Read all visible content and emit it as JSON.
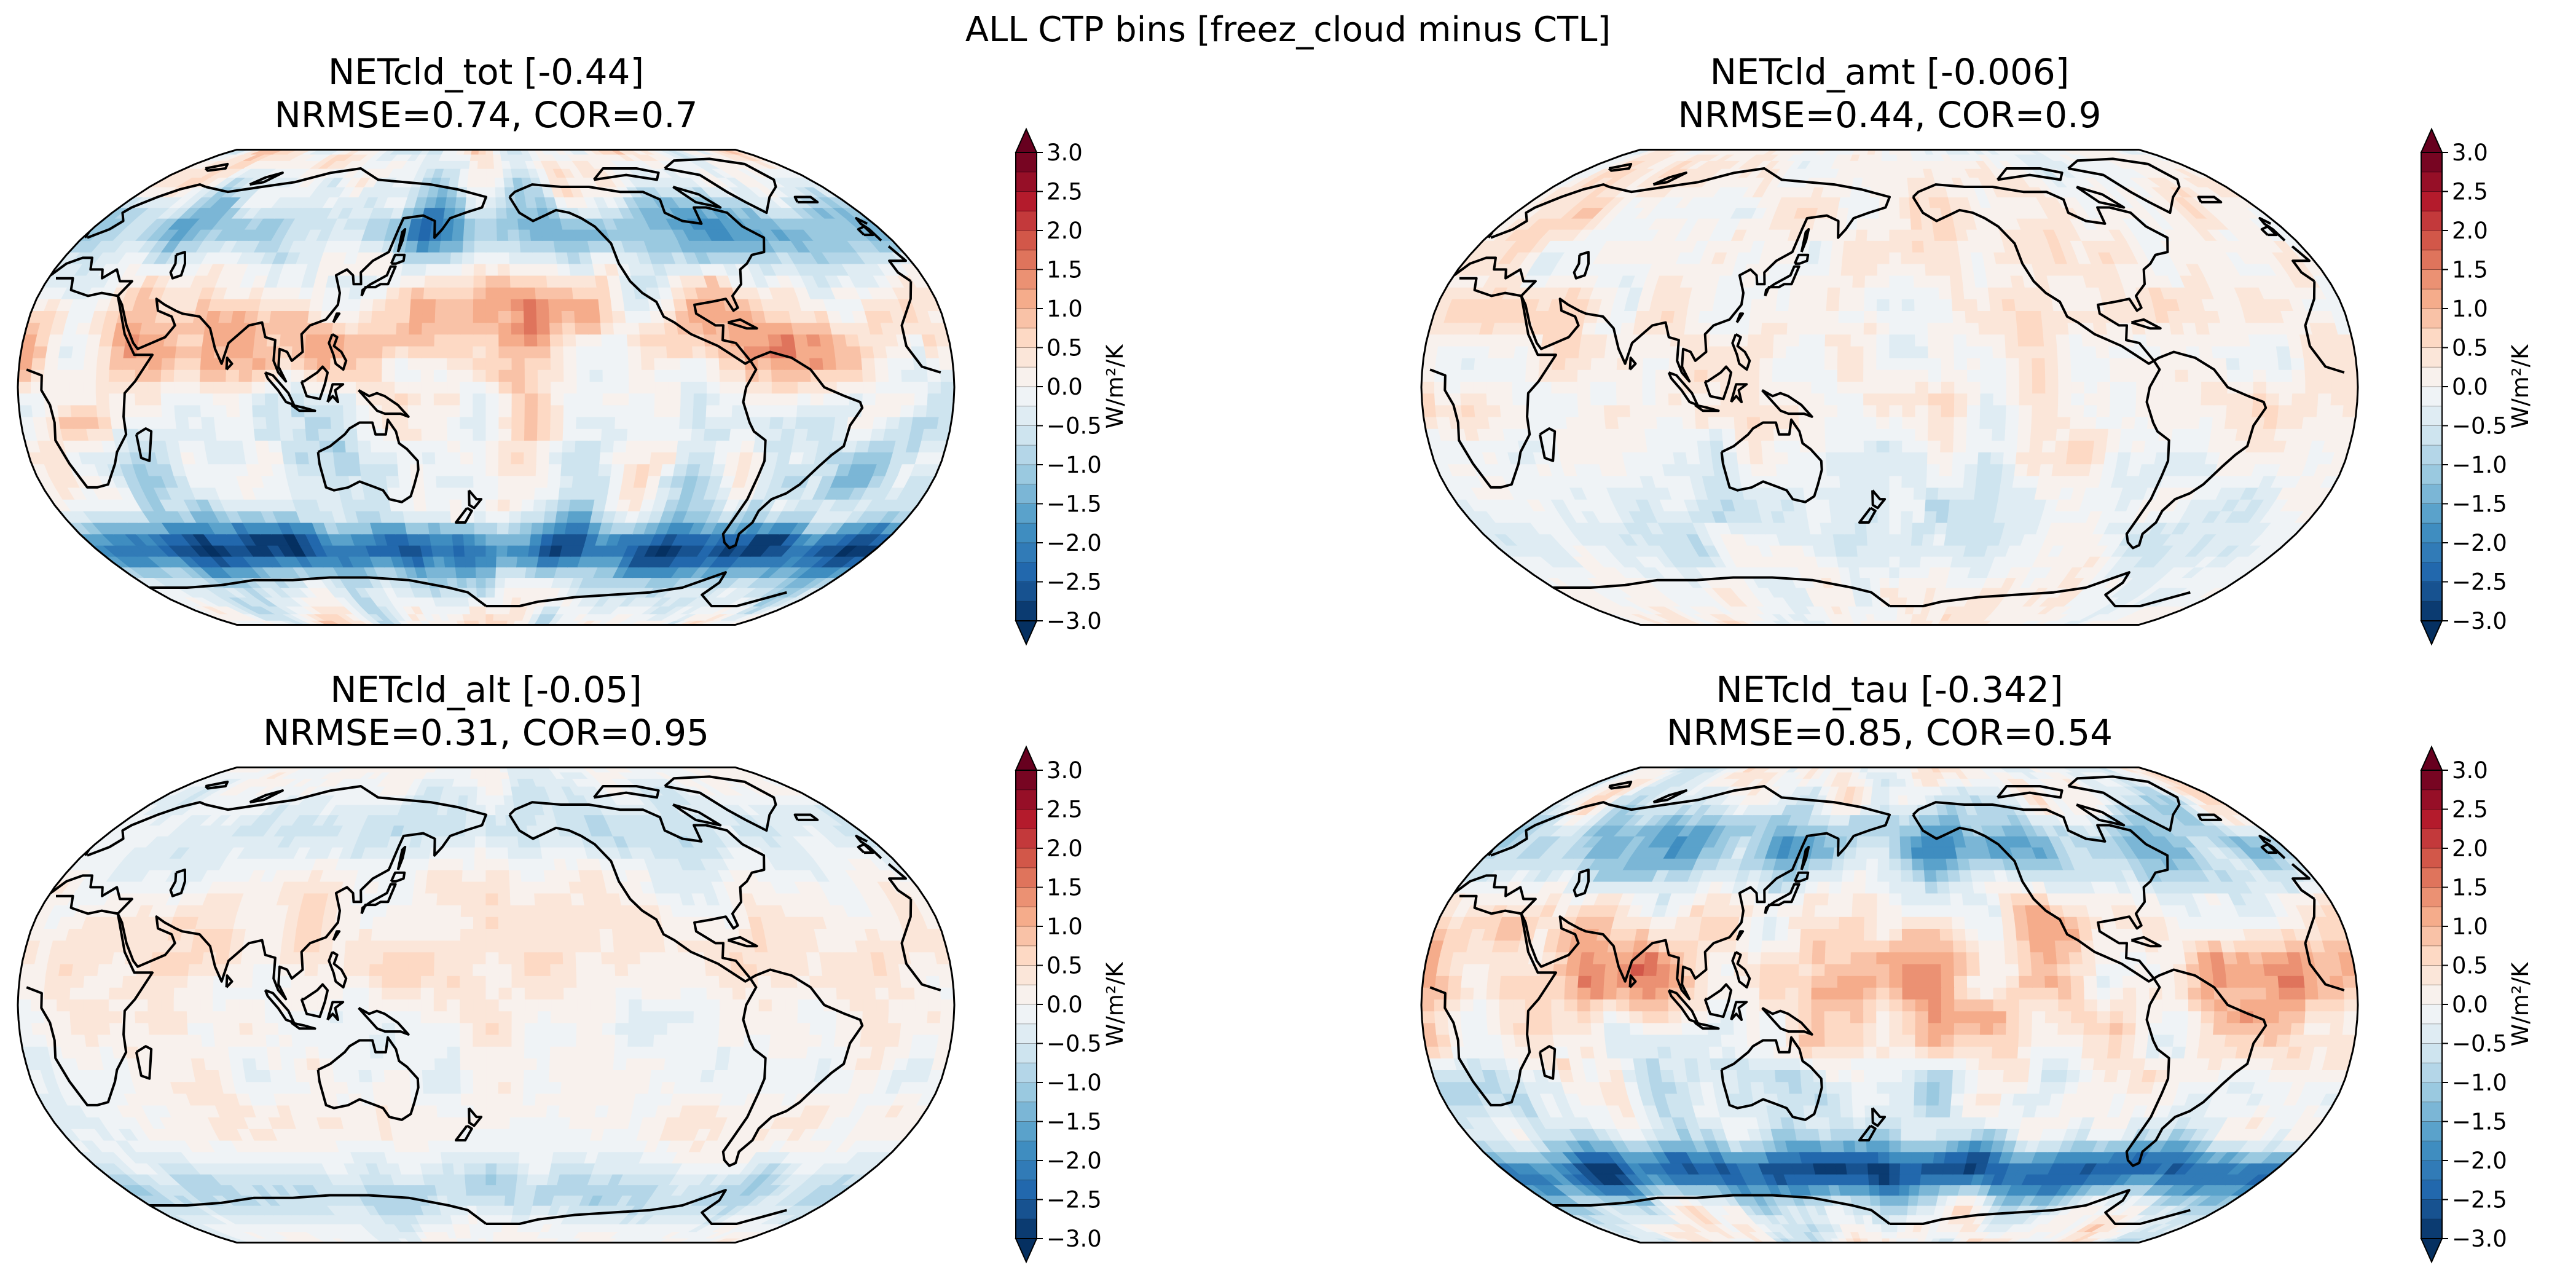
{
  "figure": {
    "suptitle": "ALL CTP bins [freez_cloud minus CTL]"
  },
  "colorbar": {
    "label": "W/m²/K",
    "ticks": [
      "3.0",
      "2.5",
      "2.0",
      "1.5",
      "1.0",
      "0.5",
      "0.0",
      "−0.5",
      "−1.0",
      "−1.5",
      "−2.0",
      "−2.5",
      "−3.0"
    ],
    "range": [
      -3.0,
      3.0
    ],
    "levels": [
      -3.0,
      -2.75,
      -2.5,
      -2.25,
      -2.0,
      -1.75,
      -1.5,
      -1.25,
      -1.0,
      -0.75,
      -0.5,
      -0.25,
      0.0,
      0.25,
      0.5,
      0.75,
      1.0,
      1.25,
      1.5,
      1.75,
      2.0,
      2.25,
      2.5,
      2.75,
      3.0
    ],
    "extend": "both",
    "colormap": "RdBu_r"
  },
  "chart_data": [
    {
      "type": "heatmap",
      "projection": "Robinson",
      "central_longitude": 180,
      "title": "NETcld_tot [-0.44]",
      "subtitle": "NRMSE=0.74, COR=0.7",
      "variable": "NETcld_tot",
      "global_mean": -0.44,
      "nrmse": 0.74,
      "cor": 0.7,
      "pattern": "tot"
    },
    {
      "type": "heatmap",
      "projection": "Robinson",
      "central_longitude": 180,
      "title": "NETcld_amt [-0.006]",
      "subtitle": "NRMSE=0.44, COR=0.9",
      "variable": "NETcld_amt",
      "global_mean": -0.006,
      "nrmse": 0.44,
      "cor": 0.9,
      "pattern": "amt"
    },
    {
      "type": "heatmap",
      "projection": "Robinson",
      "central_longitude": 180,
      "title": "NETcld_alt [-0.05]",
      "subtitle": "NRMSE=0.31, COR=0.95",
      "variable": "NETcld_alt",
      "global_mean": -0.05,
      "nrmse": 0.31,
      "cor": 0.95,
      "pattern": "alt"
    },
    {
      "type": "heatmap",
      "projection": "Robinson",
      "central_longitude": 180,
      "title": "NETcld_tau [-0.342]",
      "subtitle": "NRMSE=0.85, COR=0.54",
      "variable": "NETcld_tau",
      "global_mean": -0.342,
      "nrmse": 0.85,
      "cor": 0.54,
      "pattern": "tau"
    }
  ]
}
